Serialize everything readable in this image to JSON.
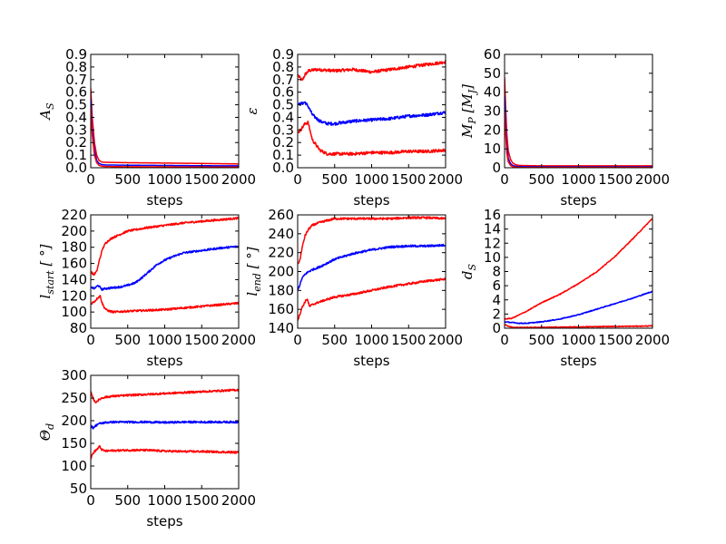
{
  "figure": {
    "background": "#ffffff",
    "line_colors": {
      "red": "#ff0000",
      "blue": "#0000ff"
    }
  },
  "chart_data": [
    {
      "id": "A_S",
      "type": "line",
      "xlabel": "steps",
      "ylabel": "A_S",
      "xlim": [
        0,
        2000
      ],
      "ylim": [
        0,
        0.9
      ],
      "xticks": [
        0,
        500,
        1000,
        1500,
        2000
      ],
      "yticks": [
        0.0,
        0.1,
        0.2,
        0.3,
        0.4,
        0.5,
        0.6,
        0.7,
        0.8,
        0.9
      ],
      "ytick_labels": [
        "0.0",
        "0.1",
        "0.2",
        "0.3",
        "0.4",
        "0.5",
        "0.6",
        "0.7",
        "0.8",
        "0.9"
      ],
      "series": [
        {
          "color": "red",
          "x": [
            0,
            20,
            50,
            80,
            110,
            150,
            200,
            500,
            1000,
            1500,
            2000
          ],
          "y": [
            0.63,
            0.4,
            0.2,
            0.1,
            0.06,
            0.045,
            0.043,
            0.04,
            0.037,
            0.034,
            0.03
          ]
        },
        {
          "color": "blue",
          "x": [
            0,
            20,
            50,
            80,
            110,
            150,
            200,
            500,
            1000,
            1500,
            2000
          ],
          "y": [
            0.55,
            0.32,
            0.14,
            0.06,
            0.035,
            0.025,
            0.022,
            0.02,
            0.018,
            0.016,
            0.015
          ]
        },
        {
          "color": "red",
          "x": [
            0,
            20,
            50,
            80,
            110,
            150,
            200,
            500,
            1000,
            1500,
            2000
          ],
          "y": [
            0.48,
            0.26,
            0.1,
            0.04,
            0.02,
            0.012,
            0.01,
            0.008,
            0.007,
            0.006,
            0.005
          ]
        }
      ]
    },
    {
      "id": "epsilon",
      "type": "line",
      "xlabel": "steps",
      "ylabel": "ε",
      "xlim": [
        0,
        2000
      ],
      "ylim": [
        0,
        0.9
      ],
      "xticks": [
        0,
        500,
        1000,
        1500,
        2000
      ],
      "yticks": [
        0.0,
        0.1,
        0.2,
        0.3,
        0.4,
        0.5,
        0.6,
        0.7,
        0.8,
        0.9
      ],
      "ytick_labels": [
        "0.0",
        "0.1",
        "0.2",
        "0.3",
        "0.4",
        "0.5",
        "0.6",
        "0.7",
        "0.8",
        "0.9"
      ],
      "noise": 0.012,
      "series": [
        {
          "color": "red",
          "x": [
            0,
            60,
            100,
            150,
            250,
            500,
            750,
            1000,
            1250,
            1500,
            1750,
            2000
          ],
          "y": [
            0.74,
            0.69,
            0.74,
            0.77,
            0.78,
            0.77,
            0.78,
            0.76,
            0.78,
            0.8,
            0.82,
            0.84
          ]
        },
        {
          "color": "blue",
          "x": [
            0,
            60,
            100,
            150,
            200,
            300,
            400,
            500,
            750,
            1000,
            1250,
            1500,
            1750,
            2000
          ],
          "y": [
            0.5,
            0.51,
            0.52,
            0.48,
            0.42,
            0.37,
            0.35,
            0.35,
            0.37,
            0.38,
            0.39,
            0.41,
            0.42,
            0.44
          ]
        },
        {
          "color": "red",
          "x": [
            0,
            40,
            100,
            140,
            170,
            200,
            300,
            400,
            500,
            750,
            1000,
            1250,
            1500,
            1750,
            2000
          ],
          "y": [
            0.28,
            0.3,
            0.35,
            0.36,
            0.29,
            0.22,
            0.14,
            0.11,
            0.11,
            0.11,
            0.12,
            0.12,
            0.13,
            0.13,
            0.14
          ]
        }
      ]
    },
    {
      "id": "M_P",
      "type": "line",
      "xlabel": "steps",
      "ylabel": "M_P [M_J]",
      "xlim": [
        0,
        2000
      ],
      "ylim": [
        0,
        60
      ],
      "xticks": [
        0,
        500,
        1000,
        1500,
        2000
      ],
      "yticks": [
        0,
        10,
        20,
        30,
        40,
        50,
        60
      ],
      "ytick_labels": [
        "0",
        "10",
        "20",
        "30",
        "40",
        "50",
        "60"
      ],
      "series": [
        {
          "color": "red",
          "x": [
            0,
            15,
            30,
            50,
            80,
            110,
            150,
            200,
            500,
            1000,
            1500,
            2000
          ],
          "y": [
            48,
            32,
            18,
            9,
            4.5,
            2.5,
            1.6,
            1.2,
            1.0,
            1.0,
            1.0,
            1.0
          ]
        },
        {
          "color": "blue",
          "x": [
            0,
            15,
            30,
            50,
            80,
            110,
            150,
            200,
            500,
            1000,
            1500,
            2000
          ],
          "y": [
            38,
            24,
            12,
            5,
            2.2,
            1.2,
            0.8,
            0.6,
            0.5,
            0.5,
            0.5,
            0.5
          ]
        },
        {
          "color": "red",
          "x": [
            0,
            15,
            30,
            50,
            80,
            110,
            150,
            200,
            500,
            1000,
            1500,
            2000
          ],
          "y": [
            30,
            18,
            8,
            3.2,
            1.2,
            0.6,
            0.3,
            0.2,
            0.2,
            0.2,
            0.2,
            0.2
          ]
        }
      ]
    },
    {
      "id": "l_start",
      "type": "line",
      "xlabel": "steps",
      "ylabel": "l_start [°]",
      "xlim": [
        0,
        2000
      ],
      "ylim": [
        80,
        220
      ],
      "xticks": [
        0,
        500,
        1000,
        1500,
        2000
      ],
      "yticks": [
        80,
        100,
        120,
        140,
        160,
        180,
        200,
        220
      ],
      "ytick_labels": [
        "80",
        "100",
        "120",
        "140",
        "160",
        "180",
        "200",
        "220"
      ],
      "noise": 1.2,
      "series": [
        {
          "color": "red",
          "x": [
            0,
            40,
            80,
            120,
            160,
            200,
            250,
            300,
            400,
            500,
            750,
            1000,
            1250,
            1500,
            1750,
            2000
          ],
          "y": [
            150,
            146,
            150,
            165,
            178,
            185,
            189,
            192,
            196,
            200,
            204,
            207,
            210,
            212,
            214,
            216
          ]
        },
        {
          "color": "blue",
          "x": [
            0,
            50,
            100,
            150,
            200,
            300,
            400,
            500,
            600,
            700,
            800,
            900,
            1000,
            1100,
            1250,
            1500,
            1750,
            2000
          ],
          "y": [
            131,
            129,
            133,
            128,
            129,
            130,
            131,
            133,
            136,
            143,
            151,
            159,
            164,
            168,
            173,
            176,
            179,
            181
          ]
        },
        {
          "color": "red",
          "x": [
            0,
            50,
            100,
            130,
            150,
            180,
            220,
            300,
            500,
            750,
            1000,
            1250,
            1500,
            1750,
            2000
          ],
          "y": [
            110,
            113,
            118,
            120,
            112,
            106,
            102,
            100,
            101,
            102,
            103,
            105,
            107,
            109,
            111
          ]
        }
      ]
    },
    {
      "id": "l_end",
      "type": "line",
      "xlabel": "steps",
      "ylabel": "l_end [°]",
      "xlim": [
        0,
        2000
      ],
      "ylim": [
        140,
        260
      ],
      "xticks": [
        0,
        500,
        1000,
        1500,
        2000
      ],
      "yticks": [
        140,
        160,
        180,
        200,
        220,
        240,
        260
      ],
      "ytick_labels": [
        "140",
        "160",
        "180",
        "200",
        "220",
        "240",
        "260"
      ],
      "noise": 1.1,
      "series": [
        {
          "color": "red",
          "x": [
            0,
            30,
            60,
            100,
            150,
            200,
            300,
            400,
            500,
            750,
            1000,
            1250,
            1500,
            1750,
            2000
          ],
          "y": [
            208,
            212,
            225,
            238,
            245,
            249,
            252,
            254,
            256,
            256,
            256,
            256,
            257,
            257,
            256
          ]
        },
        {
          "color": "blue",
          "x": [
            0,
            30,
            60,
            100,
            150,
            200,
            300,
            400,
            500,
            750,
            1000,
            1250,
            1500,
            1750,
            2000
          ],
          "y": [
            180,
            186,
            193,
            197,
            200,
            202,
            205,
            209,
            213,
            219,
            223,
            226,
            227,
            227,
            228
          ]
        },
        {
          "color": "red",
          "x": [
            0,
            30,
            60,
            100,
            130,
            160,
            200,
            300,
            500,
            750,
            1000,
            1250,
            1500,
            1750,
            2000
          ],
          "y": [
            148,
            155,
            162,
            168,
            171,
            163,
            165,
            168,
            173,
            176,
            180,
            184,
            187,
            190,
            192
          ]
        }
      ]
    },
    {
      "id": "d_S",
      "type": "line",
      "xlabel": "steps",
      "ylabel": "d_S",
      "xlim": [
        0,
        2000
      ],
      "ylim": [
        0,
        16
      ],
      "xticks": [
        0,
        500,
        1000,
        1500,
        2000
      ],
      "yticks": [
        0,
        2,
        4,
        6,
        8,
        10,
        12,
        14,
        16
      ],
      "ytick_labels": [
        "0",
        "2",
        "4",
        "6",
        "8",
        "10",
        "12",
        "14",
        "16"
      ],
      "noise": 0.06,
      "series": [
        {
          "color": "red",
          "x": [
            0,
            100,
            200,
            300,
            500,
            750,
            1000,
            1250,
            1500,
            1750,
            2000
          ],
          "y": [
            1.3,
            1.4,
            1.9,
            2.4,
            3.6,
            4.8,
            6.3,
            8.0,
            10.2,
            12.8,
            15.5
          ]
        },
        {
          "color": "blue",
          "x": [
            0,
            100,
            200,
            300,
            500,
            750,
            1000,
            1250,
            1500,
            1750,
            2000
          ],
          "y": [
            0.9,
            0.8,
            0.7,
            0.7,
            0.9,
            1.3,
            1.9,
            2.7,
            3.5,
            4.3,
            5.2
          ]
        },
        {
          "color": "red",
          "x": [
            0,
            50,
            100,
            150,
            200,
            500,
            750,
            1000,
            1250,
            1500,
            1750,
            2000
          ],
          "y": [
            0.5,
            0.3,
            0.15,
            0.1,
            0.1,
            0.12,
            0.15,
            0.18,
            0.22,
            0.25,
            0.28,
            0.32
          ]
        }
      ]
    },
    {
      "id": "Theta_d",
      "type": "line",
      "xlabel": "steps",
      "ylabel": "Θ_d",
      "xlim": [
        0,
        2000
      ],
      "ylim": [
        50,
        300
      ],
      "xticks": [
        0,
        500,
        1000,
        1500,
        2000
      ],
      "yticks": [
        50,
        100,
        150,
        200,
        250,
        300
      ],
      "ytick_labels": [
        "50",
        "100",
        "150",
        "200",
        "250",
        "300"
      ],
      "noise": 2.2,
      "series": [
        {
          "color": "red",
          "x": [
            0,
            30,
            60,
            100,
            150,
            200,
            300,
            500,
            750,
            1000,
            1250,
            1500,
            1750,
            2000
          ],
          "y": [
            265,
            250,
            240,
            245,
            250,
            252,
            254,
            256,
            258,
            260,
            262,
            264,
            266,
            268
          ]
        },
        {
          "color": "blue",
          "x": [
            0,
            30,
            60,
            100,
            200,
            300,
            500,
            750,
            1000,
            1250,
            1500,
            1750,
            2000
          ],
          "y": [
            190,
            184,
            188,
            193,
            196,
            197,
            197,
            197,
            196,
            197,
            197,
            197,
            197
          ]
        },
        {
          "color": "red",
          "x": [
            0,
            20,
            50,
            80,
            120,
            150,
            200,
            300,
            500,
            750,
            1000,
            1250,
            1500,
            1750,
            2000
          ],
          "y": [
            115,
            125,
            132,
            136,
            143,
            136,
            133,
            134,
            135,
            135,
            133,
            132,
            132,
            131,
            130
          ]
        }
      ]
    }
  ]
}
